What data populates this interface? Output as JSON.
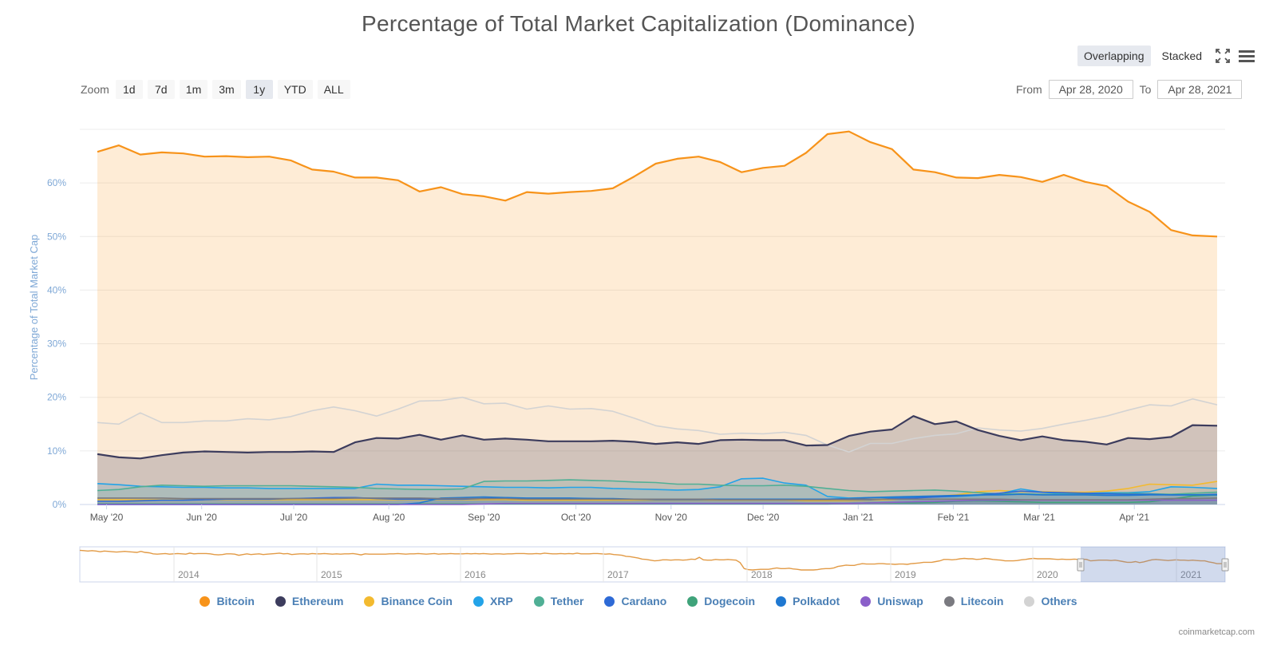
{
  "title": "Percentage of Total Market Capitalization (Dominance)",
  "modes": {
    "overlapping": "Overlapping",
    "stacked": "Stacked",
    "active": "overlapping"
  },
  "icons": {
    "fullscreen": "fullscreen-icon",
    "menu": "menu-icon"
  },
  "zoom": {
    "label": "Zoom",
    "buttons": [
      "1d",
      "7d",
      "1m",
      "3m",
      "1y",
      "YTD",
      "ALL"
    ],
    "active": "1y"
  },
  "range": {
    "from_label": "From",
    "from_value": "Apr 28, 2020",
    "to_label": "To",
    "to_value": "Apr 28, 2021"
  },
  "credit": "coinmarketcap.com",
  "chart_data": {
    "type": "area",
    "ylabel": "Percentage of Total Market Cap",
    "ylim": [
      0,
      70
    ],
    "y_ticks": [
      0,
      10,
      20,
      30,
      40,
      50,
      60
    ],
    "y_tick_labels": [
      "0%",
      "10%",
      "20%",
      "30%",
      "40%",
      "50%",
      "60%"
    ],
    "x_range": [
      "2020-04-28",
      "2021-04-28"
    ],
    "x_ticks": [
      {
        "date": "2020-05-01",
        "label": "May '20"
      },
      {
        "date": "2020-06-01",
        "label": "Jun '20"
      },
      {
        "date": "2020-07-01",
        "label": "Jul '20"
      },
      {
        "date": "2020-08-01",
        "label": "Aug '20"
      },
      {
        "date": "2020-09-01",
        "label": "Sep '20"
      },
      {
        "date": "2020-10-01",
        "label": "Oct '20"
      },
      {
        "date": "2020-11-01",
        "label": "Nov '20"
      },
      {
        "date": "2020-12-01",
        "label": "Dec '20"
      },
      {
        "date": "2021-01-01",
        "label": "Jan '21"
      },
      {
        "date": "2021-02-01",
        "label": "Feb '21"
      },
      {
        "date": "2021-03-01",
        "label": "Mar '21"
      },
      {
        "date": "2021-04-01",
        "label": "Apr '21"
      }
    ],
    "x": [
      "2020-04-28",
      "2020-05-05",
      "2020-05-12",
      "2020-05-19",
      "2020-05-26",
      "2020-06-02",
      "2020-06-09",
      "2020-06-16",
      "2020-06-23",
      "2020-06-30",
      "2020-07-07",
      "2020-07-14",
      "2020-07-21",
      "2020-07-28",
      "2020-08-04",
      "2020-08-11",
      "2020-08-18",
      "2020-08-25",
      "2020-09-01",
      "2020-09-08",
      "2020-09-15",
      "2020-09-22",
      "2020-09-29",
      "2020-10-06",
      "2020-10-13",
      "2020-10-20",
      "2020-10-27",
      "2020-11-03",
      "2020-11-10",
      "2020-11-17",
      "2020-11-24",
      "2020-12-01",
      "2020-12-08",
      "2020-12-15",
      "2020-12-22",
      "2020-12-29",
      "2021-01-05",
      "2021-01-12",
      "2021-01-19",
      "2021-01-26",
      "2021-02-02",
      "2021-02-09",
      "2021-02-16",
      "2021-02-23",
      "2021-03-02",
      "2021-03-09",
      "2021-03-16",
      "2021-03-23",
      "2021-03-30",
      "2021-04-06",
      "2021-04-13",
      "2021-04-20",
      "2021-04-28"
    ],
    "series": [
      {
        "name": "Bitcoin",
        "color": "#f7931a",
        "values": [
          65.8,
          67.0,
          65.3,
          65.7,
          65.5,
          64.9,
          65.0,
          64.8,
          64.9,
          64.2,
          62.5,
          62.1,
          61.0,
          61.0,
          60.5,
          58.4,
          59.2,
          57.9,
          57.5,
          56.7,
          58.3,
          58.0,
          58.3,
          58.5,
          59.0,
          61.2,
          63.6,
          64.5,
          64.9,
          63.9,
          62.0,
          62.8,
          63.2,
          65.6,
          69.1,
          69.6,
          67.6,
          66.3,
          62.5,
          62.0,
          61.0,
          60.9,
          61.5,
          61.1,
          60.2,
          61.5,
          60.2,
          59.4,
          56.5,
          54.6,
          51.2,
          50.2,
          50.0
        ]
      },
      {
        "name": "Others",
        "color": "#d3d3d3",
        "values": [
          15.3,
          15.0,
          17.1,
          15.3,
          15.3,
          15.6,
          15.6,
          16.0,
          15.8,
          16.4,
          17.5,
          18.2,
          17.5,
          16.5,
          17.8,
          19.3,
          19.4,
          20.0,
          18.8,
          18.9,
          17.8,
          18.4,
          17.8,
          17.9,
          17.4,
          16.1,
          14.7,
          14.1,
          13.8,
          13.1,
          13.3,
          13.2,
          13.5,
          12.9,
          11.1,
          9.8,
          11.4,
          11.4,
          12.3,
          12.9,
          13.2,
          14.3,
          13.9,
          13.7,
          14.2,
          15.0,
          15.7,
          16.5,
          17.6,
          18.6,
          18.4,
          19.7,
          18.6
        ]
      },
      {
        "name": "Ethereum",
        "color": "#3c3c5d",
        "values": [
          9.4,
          8.8,
          8.6,
          9.2,
          9.7,
          9.9,
          9.8,
          9.7,
          9.8,
          9.8,
          9.9,
          9.8,
          11.6,
          12.4,
          12.3,
          13.0,
          12.1,
          12.9,
          12.1,
          12.3,
          12.1,
          11.8,
          11.8,
          11.8,
          11.9,
          11.7,
          11.3,
          11.6,
          11.3,
          12.0,
          12.1,
          12.0,
          12.0,
          11.0,
          11.1,
          12.8,
          13.6,
          14.0,
          16.5,
          15.0,
          15.5,
          13.9,
          12.8,
          12.0,
          12.7,
          12.0,
          11.7,
          11.2,
          12.4,
          12.2,
          12.6,
          14.8,
          14.7
        ]
      },
      {
        "name": "Binance Coin",
        "color": "#f3ba2f",
        "values": [
          0.9,
          0.9,
          0.9,
          0.9,
          0.9,
          0.9,
          0.9,
          0.9,
          0.9,
          0.9,
          0.9,
          0.9,
          0.9,
          0.9,
          0.9,
          0.9,
          0.9,
          0.9,
          0.9,
          0.9,
          0.8,
          0.8,
          0.8,
          0.8,
          0.8,
          0.8,
          0.8,
          0.8,
          0.8,
          0.8,
          0.8,
          0.8,
          0.8,
          0.7,
          0.7,
          0.7,
          0.8,
          0.9,
          1.2,
          1.5,
          1.8,
          2.4,
          2.6,
          2.4,
          2.4,
          2.3,
          2.3,
          2.5,
          3.0,
          3.8,
          3.7,
          3.6,
          4.3
        ]
      },
      {
        "name": "XRP",
        "color": "#23a3e8",
        "values": [
          3.9,
          3.7,
          3.4,
          3.3,
          3.2,
          3.2,
          3.1,
          3.1,
          3.0,
          3.0,
          3.0,
          3.0,
          3.0,
          3.8,
          3.6,
          3.6,
          3.5,
          3.4,
          3.3,
          3.2,
          3.2,
          3.1,
          3.2,
          3.2,
          3.0,
          2.9,
          2.8,
          2.7,
          2.8,
          3.3,
          4.8,
          4.9,
          4.0,
          3.6,
          1.5,
          1.2,
          1.3,
          1.3,
          1.4,
          1.4,
          1.5,
          1.7,
          2.0,
          2.9,
          2.3,
          2.0,
          2.1,
          2.2,
          2.2,
          2.4,
          3.3,
          3.2,
          3.0
        ]
      },
      {
        "name": "Tether",
        "color": "#50af95",
        "values": [
          2.6,
          2.8,
          3.3,
          3.6,
          3.5,
          3.4,
          3.5,
          3.5,
          3.5,
          3.5,
          3.4,
          3.3,
          3.2,
          3.0,
          2.9,
          2.8,
          2.8,
          2.9,
          4.3,
          4.4,
          4.4,
          4.5,
          4.6,
          4.5,
          4.4,
          4.2,
          4.1,
          3.8,
          3.8,
          3.6,
          3.5,
          3.5,
          3.6,
          3.4,
          3.0,
          2.6,
          2.4,
          2.5,
          2.6,
          2.7,
          2.5,
          2.2,
          2.0,
          2.0,
          1.9,
          1.9,
          1.9,
          2.0,
          2.1,
          2.0,
          1.9,
          2.1,
          2.3
        ]
      },
      {
        "name": "Cardano",
        "color": "#2e6ad6",
        "values": [
          0.6,
          0.6,
          0.7,
          0.8,
          0.8,
          0.9,
          1.0,
          1.0,
          1.0,
          1.1,
          1.2,
          1.3,
          1.3,
          1.1,
          1.0,
          1.0,
          1.0,
          1.0,
          1.1,
          1.2,
          1.1,
          1.1,
          1.1,
          1.1,
          1.0,
          1.0,
          0.9,
          0.9,
          0.9,
          0.9,
          0.9,
          0.9,
          0.9,
          0.9,
          0.9,
          0.9,
          0.9,
          1.1,
          1.2,
          1.4,
          1.6,
          1.8,
          2.1,
          2.5,
          2.3,
          2.2,
          2.1,
          2.0,
          1.9,
          1.9,
          1.8,
          1.8,
          1.9
        ]
      },
      {
        "name": "Dogecoin",
        "color": "#3fa37a",
        "values": [
          0.1,
          0.1,
          0.1,
          0.1,
          0.1,
          0.1,
          0.1,
          0.1,
          0.1,
          0.1,
          0.1,
          0.1,
          0.1,
          0.1,
          0.1,
          0.1,
          0.1,
          0.1,
          0.1,
          0.1,
          0.1,
          0.1,
          0.1,
          0.1,
          0.1,
          0.1,
          0.1,
          0.1,
          0.1,
          0.1,
          0.1,
          0.1,
          0.1,
          0.1,
          0.1,
          0.2,
          0.3,
          0.3,
          0.3,
          0.4,
          0.6,
          0.7,
          0.6,
          0.5,
          0.4,
          0.4,
          0.4,
          0.4,
          0.4,
          0.5,
          1.0,
          1.6,
          1.8
        ]
      },
      {
        "name": "Polkadot",
        "color": "#1f78d1",
        "values": [
          0.0,
          0.0,
          0.0,
          0.0,
          0.0,
          0.0,
          0.0,
          0.0,
          0.0,
          0.0,
          0.0,
          0.0,
          0.0,
          0.0,
          0.0,
          0.3,
          1.2,
          1.3,
          1.4,
          1.3,
          1.2,
          1.2,
          1.2,
          1.1,
          1.1,
          1.0,
          1.0,
          1.0,
          1.0,
          1.0,
          1.0,
          1.0,
          1.0,
          1.0,
          1.0,
          1.1,
          1.3,
          1.4,
          1.5,
          1.6,
          1.7,
          1.8,
          1.8,
          1.9,
          1.8,
          1.8,
          1.8,
          1.7,
          1.7,
          1.8,
          1.8,
          1.8,
          1.8
        ]
      },
      {
        "name": "Uniswap",
        "color": "#8a5fc9",
        "values": [
          0.0,
          0.0,
          0.0,
          0.0,
          0.0,
          0.0,
          0.0,
          0.0,
          0.0,
          0.0,
          0.0,
          0.0,
          0.0,
          0.0,
          0.0,
          0.0,
          0.0,
          0.0,
          0.1,
          0.2,
          0.2,
          0.2,
          0.2,
          0.2,
          0.2,
          0.2,
          0.2,
          0.2,
          0.2,
          0.2,
          0.2,
          0.2,
          0.2,
          0.2,
          0.2,
          0.2,
          0.3,
          0.4,
          0.5,
          0.6,
          0.7,
          0.8,
          0.8,
          0.8,
          0.8,
          0.8,
          0.8,
          0.8,
          0.8,
          0.8,
          0.8,
          0.8,
          0.8
        ]
      },
      {
        "name": "Litecoin",
        "color": "#7a7a80",
        "values": [
          1.2,
          1.2,
          1.2,
          1.2,
          1.1,
          1.1,
          1.1,
          1.1,
          1.1,
          1.1,
          1.1,
          1.1,
          1.2,
          1.2,
          1.2,
          1.2,
          1.1,
          1.1,
          1.1,
          1.1,
          1.0,
          1.0,
          1.0,
          1.0,
          1.0,
          1.0,
          1.0,
          1.0,
          1.0,
          0.9,
          0.9,
          0.9,
          0.9,
          0.9,
          0.9,
          1.0,
          1.0,
          1.0,
          1.0,
          1.0,
          1.0,
          1.0,
          1.0,
          0.9,
          0.9,
          0.9,
          0.9,
          0.9,
          0.9,
          1.0,
          1.1,
          1.1,
          1.2
        ]
      }
    ],
    "legend_order": [
      "Bitcoin",
      "Ethereum",
      "Binance Coin",
      "XRP",
      "Tether",
      "Cardano",
      "Dogecoin",
      "Polkadot",
      "Uniswap",
      "Litecoin",
      "Others"
    ],
    "legend_placement": "bottom",
    "grid": true,
    "navigator": {
      "x_labels": [
        "2014",
        "2015",
        "2016",
        "2017",
        "2018",
        "2019",
        "2020",
        "2021"
      ],
      "bitcoin_values": [
        90,
        89,
        88,
        89,
        88,
        86,
        88,
        87,
        86,
        85,
        86,
        87,
        86,
        85,
        84,
        87,
        84,
        83,
        80,
        79,
        80,
        81,
        79,
        80,
        81,
        80,
        79,
        82,
        80,
        81,
        81,
        81,
        80,
        78,
        77,
        78,
        80,
        80,
        79,
        76,
        78,
        80,
        78,
        79,
        80,
        78,
        79,
        80,
        81,
        82,
        80,
        81,
        78,
        79,
        80,
        80,
        79,
        81,
        80,
        80,
        81,
        80,
        79,
        80,
        79,
        80,
        80,
        81,
        79,
        77,
        80,
        79,
        79,
        79,
        79,
        79,
        80,
        80,
        81,
        80,
        79,
        80,
        80,
        81,
        80,
        79,
        80,
        81,
        79,
        80,
        80,
        81,
        80,
        80,
        80,
        81,
        80,
        81,
        80,
        81,
        80,
        79,
        80,
        80,
        79,
        80,
        80,
        81,
        81,
        81,
        80,
        80,
        81,
        80,
        82,
        81,
        80,
        80,
        81,
        80,
        81,
        80,
        82,
        80,
        80,
        80,
        81,
        81,
        80,
        79,
        80,
        78,
        77,
        76,
        73,
        72,
        70,
        68,
        65,
        64,
        62,
        60,
        61,
        63,
        63,
        62,
        63,
        63,
        62,
        63,
        65,
        64,
        70,
        63,
        62,
        62,
        64,
        63,
        63,
        64,
        63,
        62,
        55,
        38,
        35,
        34,
        35,
        36,
        36,
        36,
        38,
        40,
        38,
        38,
        39,
        37,
        36,
        34,
        34,
        34,
        34,
        35,
        37,
        38,
        38,
        40,
        44,
        46,
        48,
        47,
        47,
        50,
        52,
        51,
        51,
        51,
        52,
        52,
        51,
        51,
        50,
        51,
        51,
        50,
        52,
        53,
        54,
        56,
        56,
        56,
        58,
        60,
        64,
        64,
        63,
        64,
        66,
        67,
        66,
        66,
        64,
        65,
        67,
        66,
        64,
        63,
        62,
        60,
        60,
        60,
        61,
        63,
        64,
        66,
        67,
        66,
        66,
        66,
        66,
        65,
        64,
        65,
        64,
        64,
        65,
        64,
        65,
        64,
        60,
        61,
        62,
        62,
        62,
        61,
        62,
        60,
        58,
        56,
        56,
        58,
        55,
        57,
        60,
        63,
        64,
        63,
        62,
        61,
        62,
        63,
        62,
        62,
        61,
        62,
        61,
        60,
        60,
        57,
        55,
        52,
        52,
        51
      ],
      "selection": [
        "2020-04-28",
        "2021-04-28"
      ]
    }
  }
}
